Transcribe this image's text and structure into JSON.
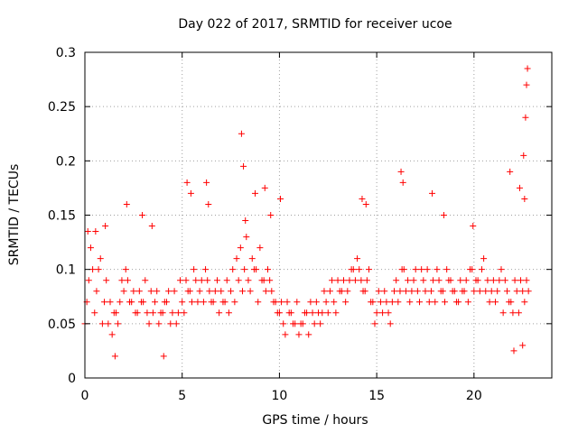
{
  "chart_data": {
    "type": "scatter",
    "title": "Day 022 of 2017, SRMTID for receiver ucoe",
    "xlabel": "GPS time / hours",
    "ylabel": "SRMTID / TECUs",
    "xlim": [
      0,
      24
    ],
    "ylim": [
      0,
      0.3
    ],
    "xticks": [
      0,
      5,
      10,
      15,
      20
    ],
    "xtick_labels": [
      "0",
      "5",
      "10",
      "15",
      "20"
    ],
    "yticks": [
      0,
      0.05,
      0.1,
      0.15,
      0.2,
      0.25,
      0.3
    ],
    "ytick_labels": [
      "0",
      "0.05",
      "0.1",
      "0.15",
      "0.2",
      "0.25",
      "0.3"
    ],
    "grid": true,
    "marker": "+",
    "color": "#ff0000",
    "series": [
      {
        "name": "SRMTID",
        "x": [
          0.0,
          0.2,
          0.4,
          0.6,
          0.8,
          1.0,
          1.2,
          1.4,
          1.6,
          1.8,
          2.0,
          2.2,
          2.4,
          2.6,
          2.8,
          3.0,
          3.2,
          3.4,
          3.6,
          3.8,
          4.0,
          4.2,
          4.4,
          4.6,
          4.8,
          5.0,
          5.2,
          5.4,
          5.6,
          5.8,
          6.0,
          6.2,
          6.4,
          6.6,
          6.8,
          7.0,
          7.2,
          7.4,
          7.6,
          7.8,
          8.0,
          8.2,
          8.4,
          8.6,
          8.8,
          9.0,
          9.2,
          9.4,
          9.6,
          9.8,
          10.0,
          10.2,
          10.4,
          10.6,
          10.8,
          11.0,
          11.2,
          11.4,
          11.6,
          11.8,
          12.0,
          12.2,
          12.4,
          12.6,
          12.8,
          13.0,
          13.2,
          13.4,
          13.6,
          13.8,
          14.0,
          14.2,
          14.4,
          14.6,
          14.8,
          15.0,
          15.2,
          15.4,
          15.6,
          15.8,
          16.0,
          16.2,
          16.4,
          16.6,
          16.8,
          17.0,
          17.2,
          17.4,
          17.6,
          17.8,
          18.0,
          18.2,
          18.4,
          18.6,
          18.8,
          19.0,
          19.2,
          19.4,
          19.6,
          19.8,
          20.0,
          20.2,
          20.4,
          20.6,
          20.8,
          21.0,
          21.2,
          21.4,
          21.6,
          21.8,
          22.0,
          22.2,
          22.4,
          22.6,
          22.8,
          0.1,
          0.3,
          0.5,
          0.7,
          0.9,
          1.1,
          1.3,
          1.5,
          1.7,
          1.9,
          2.1,
          2.3,
          2.5,
          2.7,
          2.9,
          3.1,
          3.3,
          3.5,
          3.7,
          3.9,
          4.1,
          4.3,
          4.5,
          4.7,
          4.9,
          5.1,
          5.3,
          5.5,
          5.7,
          5.9,
          6.1,
          6.3,
          6.5,
          6.7,
          6.9,
          7.1,
          7.3,
          7.5,
          7.7,
          7.9,
          8.1,
          8.3,
          8.5,
          8.7,
          8.9,
          9.1,
          9.3,
          9.5,
          9.7,
          9.9,
          10.1,
          10.3,
          10.5,
          10.7,
          10.9,
          11.1,
          11.3,
          11.5,
          11.7,
          11.9,
          12.1,
          12.3,
          12.5,
          12.7,
          12.9,
          13.1,
          13.3,
          13.5,
          13.7,
          13.9,
          14.1,
          14.3,
          14.5,
          14.7,
          14.9,
          15.1,
          15.3,
          15.5,
          15.7,
          15.9,
          16.1,
          16.3,
          16.5,
          16.7,
          16.9,
          17.1,
          17.3,
          17.5,
          17.7,
          17.9,
          18.1,
          18.3,
          18.5,
          18.7,
          18.9,
          19.1,
          19.3,
          19.5,
          19.7,
          19.9,
          20.1,
          20.3,
          20.5,
          20.7,
          20.9,
          21.1,
          21.3,
          21.5,
          21.7,
          21.9,
          22.1,
          22.3,
          22.5,
          22.7,
          0.15,
          0.55,
          1.05,
          1.55,
          2.15,
          2.95,
          3.45,
          4.05,
          5.25,
          5.45,
          6.25,
          6.35,
          8.05,
          8.15,
          8.25,
          8.75,
          9.25,
          9.55,
          10.05,
          14.25,
          14.45,
          16.25,
          16.35,
          17.85,
          18.45,
          19.95,
          21.85,
          22.05,
          22.35,
          22.55,
          22.65,
          22.7,
          22.75,
          22.6,
          22.5
        ],
        "y": [
          0.05,
          0.09,
          0.1,
          0.08,
          0.11,
          0.07,
          0.05,
          0.04,
          0.06,
          0.07,
          0.08,
          0.09,
          0.07,
          0.06,
          0.08,
          0.07,
          0.06,
          0.08,
          0.07,
          0.05,
          0.06,
          0.07,
          0.05,
          0.08,
          0.06,
          0.07,
          0.09,
          0.08,
          0.1,
          0.07,
          0.09,
          0.1,
          0.08,
          0.07,
          0.09,
          0.08,
          0.07,
          0.06,
          0.1,
          0.11,
          0.12,
          0.1,
          0.09,
          0.11,
          0.1,
          0.12,
          0.09,
          0.1,
          0.08,
          0.07,
          0.06,
          0.05,
          0.07,
          0.06,
          0.05,
          0.04,
          0.05,
          0.06,
          0.07,
          0.05,
          0.06,
          0.06,
          0.07,
          0.08,
          0.07,
          0.09,
          0.08,
          0.07,
          0.09,
          0.1,
          0.11,
          0.09,
          0.08,
          0.1,
          0.07,
          0.06,
          0.07,
          0.08,
          0.06,
          0.07,
          0.09,
          0.08,
          0.1,
          0.09,
          0.08,
          0.1,
          0.07,
          0.09,
          0.1,
          0.08,
          0.07,
          0.09,
          0.08,
          0.1,
          0.09,
          0.08,
          0.07,
          0.08,
          0.09,
          0.1,
          0.08,
          0.09,
          0.1,
          0.08,
          0.07,
          0.09,
          0.08,
          0.1,
          0.09,
          0.07,
          0.06,
          0.08,
          0.09,
          0.07,
          0.08,
          0.07,
          0.12,
          0.06,
          0.1,
          0.05,
          0.09,
          0.07,
          0.06,
          0.05,
          0.09,
          0.1,
          0.07,
          0.08,
          0.06,
          0.07,
          0.09,
          0.05,
          0.06,
          0.08,
          0.06,
          0.07,
          0.08,
          0.06,
          0.05,
          0.09,
          0.06,
          0.08,
          0.07,
          0.09,
          0.08,
          0.07,
          0.09,
          0.07,
          0.08,
          0.06,
          0.07,
          0.09,
          0.08,
          0.07,
          0.09,
          0.08,
          0.13,
          0.08,
          0.1,
          0.07,
          0.09,
          0.08,
          0.09,
          0.07,
          0.06,
          0.07,
          0.04,
          0.06,
          0.05,
          0.07,
          0.05,
          0.06,
          0.04,
          0.06,
          0.07,
          0.05,
          0.08,
          0.06,
          0.09,
          0.06,
          0.08,
          0.09,
          0.08,
          0.1,
          0.09,
          0.1,
          0.08,
          0.09,
          0.07,
          0.05,
          0.08,
          0.06,
          0.07,
          0.05,
          0.08,
          0.07,
          0.1,
          0.08,
          0.07,
          0.09,
          0.08,
          0.1,
          0.08,
          0.07,
          0.09,
          0.1,
          0.08,
          0.07,
          0.09,
          0.08,
          0.07,
          0.09,
          0.08,
          0.07,
          0.1,
          0.09,
          0.08,
          0.11,
          0.09,
          0.08,
          0.07,
          0.09,
          0.06,
          0.08,
          0.07,
          0.09,
          0.06,
          0.08,
          0.09,
          0.135,
          0.135,
          0.14,
          0.02,
          0.16,
          0.15,
          0.14,
          0.02,
          0.18,
          0.17,
          0.18,
          0.16,
          0.225,
          0.195,
          0.145,
          0.17,
          0.175,
          0.15,
          0.165,
          0.165,
          0.16,
          0.19,
          0.18,
          0.17,
          0.15,
          0.14,
          0.19,
          0.025,
          0.175,
          0.205,
          0.24,
          0.27,
          0.285,
          0.165,
          0.03
        ]
      }
    ]
  }
}
